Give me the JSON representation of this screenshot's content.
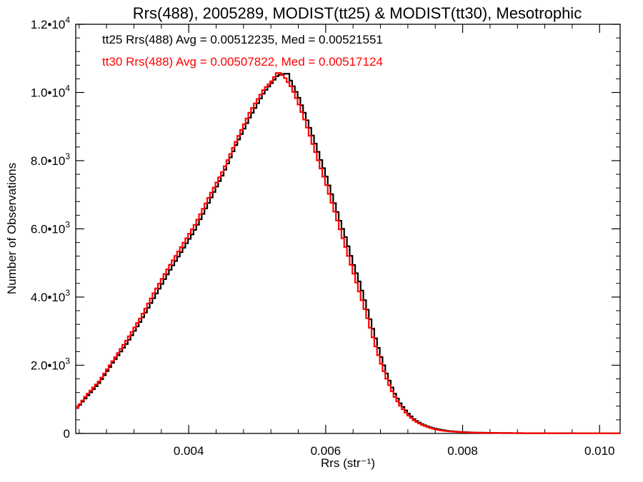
{
  "chart_data": {
    "type": "line",
    "step": true,
    "title": "Rrs(488), 2005289, MODIST(tt25) & MODIST(tt30), Mesotrophic",
    "xlabel": "Rrs (str⁻¹)",
    "ylabel": "Number of Observations",
    "xlim": [
      0.00235,
      0.0103
    ],
    "ylim": [
      0,
      12000
    ],
    "grid": false,
    "x_ticks": [
      0.004,
      0.006,
      0.008,
      0.01
    ],
    "x_tick_labels": [
      "0.004",
      "0.006",
      "0.008",
      "0.010"
    ],
    "y_ticks": [
      0,
      2000,
      4000,
      6000,
      8000,
      10000,
      12000
    ],
    "y_tick_labels": [
      {
        "mant": "0",
        "exp": ""
      },
      {
        "mant": "2.0•10",
        "exp": "3"
      },
      {
        "mant": "4.0•10",
        "exp": "3"
      },
      {
        "mant": "6.0•10",
        "exp": "3"
      },
      {
        "mant": "8.0•10",
        "exp": "3"
      },
      {
        "mant": "1.0•10",
        "exp": "4"
      },
      {
        "mant": "1.2•10",
        "exp": "4"
      }
    ],
    "annotations": [
      "tt25 Rrs(488) Avg = 0.00512235, Med = 0.00521551",
      "tt30 Rrs(488) Avg = 0.00507822, Med = 0.00517124"
    ],
    "series": [
      {
        "color": "#000000",
        "x": [
          0.00235,
          0.0025,
          0.0027,
          0.0029,
          0.0031,
          0.0033,
          0.0035,
          0.0037,
          0.0039,
          0.0041,
          0.0043,
          0.0045,
          0.0047,
          0.0049,
          0.0051,
          0.0052,
          0.0053,
          0.0054,
          0.00545,
          0.0055,
          0.0056,
          0.0057,
          0.0058,
          0.0059,
          0.006,
          0.0061,
          0.0062,
          0.0063,
          0.0064,
          0.0065,
          0.0066,
          0.0067,
          0.0068,
          0.0069,
          0.007,
          0.0071,
          0.0072,
          0.0073,
          0.0074,
          0.0075,
          0.0076,
          0.0077,
          0.0078,
          0.008,
          0.0082,
          0.0085,
          0.009,
          0.0095,
          0.0103
        ],
        "values": [
          700,
          1050,
          1500,
          2100,
          2650,
          3300,
          4000,
          4700,
          5350,
          6000,
          6800,
          7600,
          8500,
          9300,
          10000,
          10250,
          10500,
          10550,
          10550,
          10300,
          9900,
          9350,
          8800,
          8200,
          7600,
          6950,
          6300,
          5700,
          5000,
          4400,
          3700,
          3000,
          2300,
          1700,
          1200,
          850,
          600,
          400,
          280,
          200,
          140,
          100,
          70,
          40,
          25,
          15,
          8,
          5,
          2
        ]
      },
      {
        "color": "#ff0000",
        "x": [
          0.00235,
          0.0025,
          0.0027,
          0.0029,
          0.0031,
          0.0033,
          0.0035,
          0.0037,
          0.0039,
          0.0041,
          0.0043,
          0.0045,
          0.0047,
          0.0049,
          0.0051,
          0.0052,
          0.0053,
          0.00535,
          0.0054,
          0.0055,
          0.0056,
          0.0057,
          0.0058,
          0.0059,
          0.006,
          0.0061,
          0.0062,
          0.0063,
          0.0064,
          0.0065,
          0.0066,
          0.0067,
          0.0068,
          0.0069,
          0.007,
          0.0071,
          0.0072,
          0.0073,
          0.0074,
          0.0075,
          0.0076,
          0.0077,
          0.0078,
          0.008,
          0.0082,
          0.0085,
          0.009,
          0.0095,
          0.0103
        ],
        "values": [
          700,
          1100,
          1550,
          2150,
          2750,
          3400,
          4150,
          4850,
          5500,
          6150,
          6950,
          7700,
          8600,
          9450,
          10100,
          10300,
          10600,
          10550,
          10450,
          10150,
          9700,
          9150,
          8550,
          7950,
          7350,
          6700,
          6050,
          5400,
          4750,
          4100,
          3450,
          2750,
          2100,
          1550,
          1100,
          780,
          540,
          370,
          260,
          180,
          120,
          85,
          60,
          35,
          22,
          12,
          7,
          4,
          2
        ]
      }
    ]
  }
}
